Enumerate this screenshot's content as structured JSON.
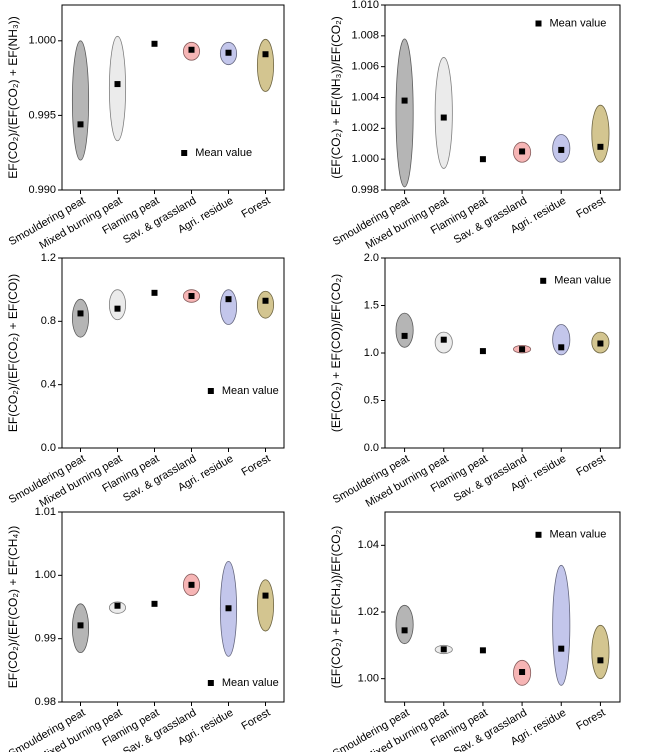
{
  "chart_data": [
    {
      "type": "scatter",
      "y_label": "EF(CO₂)/(EF(CO₂) + EF(NH₃))",
      "categories": [
        "Smouldering peat",
        "Mixed burning peat",
        "Flaming peat",
        "Sav. & grassland",
        "Agri. residue",
        "Forest"
      ],
      "colors": [
        "#a8a8a8",
        "#e8e8e8",
        null,
        "#f4a8a8",
        "#b8bce8",
        "#cbbb7c"
      ],
      "series": [
        {
          "name": "Mean value",
          "color": "#000000",
          "values": [
            0.9944,
            0.9971,
            0.9998,
            0.9994,
            0.9992,
            0.9991
          ]
        }
      ],
      "low": [
        0.992,
        0.9933,
        null,
        0.9987,
        0.9984,
        0.9966
      ],
      "high": [
        1.0,
        1.0003,
        null,
        0.9999,
        0.9999,
        1.0001
      ],
      "ylim": [
        0.99,
        1.0024
      ],
      "yticks": [
        {
          "value": 0.99,
          "label": "0.990"
        },
        0.995,
        {
          "value": 1,
          "label": "1.000"
        }
      ]
    },
    {
      "type": "scatter",
      "y_label": "(EF(CO₂) + EF(NH₃))/EF(CO₂)",
      "categories": [
        "Smouldering peat",
        "Mixed burning peat",
        "Flaming peat",
        "Sav. & grassland",
        "Agri. residue",
        "Forest"
      ],
      "colors": [
        "#a8a8a8",
        "#e8e8e8",
        null,
        "#f4a8a8",
        "#b8bce8",
        "#cbbb7c"
      ],
      "series": [
        {
          "name": "Mean value",
          "color": "#000000",
          "values": [
            1.0038,
            1.0027,
            1.0,
            1.0005,
            1.0006,
            1.0008
          ]
        }
      ],
      "low": [
        0.9982,
        0.9994,
        null,
        0.9998,
        0.9998,
        0.9998
      ],
      "high": [
        1.0078,
        1.0066,
        null,
        1.0011,
        1.0016,
        1.0035
      ],
      "ylim": [
        0.998,
        1.01
      ],
      "yticks": [
        {
          "value": 0.998,
          "label": "0.998"
        },
        {
          "value": 1,
          "label": "1.000"
        },
        1.002,
        1.004,
        1.006,
        1.008,
        {
          "value": 1.01,
          "label": "1.010"
        }
      ]
    },
    {
      "type": "scatter",
      "y_label": "EF(CO₂)/(EF(CO₂) + EF(CO))",
      "categories": [
        "Smouldering peat",
        "Mixed burning peat",
        "Flaming peat",
        "Sav. & grassland",
        "Agri. residue",
        "Forest"
      ],
      "colors": [
        "#a8a8a8",
        "#e8e8e8",
        null,
        "#f4a8a8",
        "#b8bce8",
        "#cbbb7c"
      ],
      "series": [
        {
          "name": "Mean value",
          "color": "#000000",
          "values": [
            0.85,
            0.88,
            0.98,
            0.96,
            0.94,
            0.93
          ]
        }
      ],
      "low": [
        0.7,
        0.81,
        null,
        0.92,
        0.78,
        0.82
      ],
      "high": [
        0.94,
        1.0,
        null,
        1.0,
        1.0,
        0.99
      ],
      "ylim": [
        0,
        1.2
      ],
      "yticks": [
        {
          "value": 0,
          "label": "0.0"
        },
        0.4,
        0.8,
        1.2
      ]
    },
    {
      "type": "scatter",
      "y_label": "(EF(CO₂) + EF(CO))/EF(CO₂)",
      "categories": [
        "Smouldering peat",
        "Mixed burning peat",
        "Flaming peat",
        "Sav. & grassland",
        "Agri. residue",
        "Forest"
      ],
      "colors": [
        "#a8a8a8",
        "#e8e8e8",
        null,
        "#f4a8a8",
        "#b8bce8",
        "#cbbb7c"
      ],
      "series": [
        {
          "name": "Mean value",
          "color": "#000000",
          "values": [
            1.18,
            1.14,
            1.02,
            1.04,
            1.06,
            1.1
          ]
        }
      ],
      "low": [
        1.06,
        1.0,
        null,
        1.0,
        0.98,
        1.0
      ],
      "high": [
        1.42,
        1.22,
        null,
        1.08,
        1.3,
        1.22
      ],
      "ylim": [
        0,
        2
      ],
      "yticks": [
        {
          "value": 0,
          "label": "0.0"
        },
        0.5,
        {
          "value": 1,
          "label": "1.0"
        },
        1.5,
        {
          "value": 2,
          "label": "2.0"
        }
      ]
    },
    {
      "type": "scatter",
      "y_label": "EF(CO₂)/(EF(CO₂) + EF(CH₄))",
      "categories": [
        "Smouldering peat",
        "Mixed burning peat",
        "Flaming peat",
        "Sav. & grassland",
        "Agri. residue",
        "Forest"
      ],
      "colors": [
        "#a8a8a8",
        "#e8e8e8",
        null,
        "#f4a8a8",
        "#b8bce8",
        "#cbbb7c"
      ],
      "series": [
        {
          "name": "Mean value",
          "color": "#000000",
          "values": [
            0.9921,
            0.9952,
            0.9955,
            0.9985,
            0.9948,
            0.9968
          ]
        }
      ],
      "low": [
        0.9878,
        0.994,
        null,
        0.9968,
        0.9872,
        0.9912
      ],
      "high": [
        0.9955,
        0.9958,
        null,
        1.0002,
        1.0022,
        0.9993
      ],
      "ylim": [
        0.98,
        1.01
      ],
      "yticks": [
        0.98,
        0.99,
        {
          "value": 1,
          "label": "1.00"
        },
        1.01
      ]
    },
    {
      "type": "scatter",
      "y_label": "(EF(CO₂) + EF(CH₄))/EF(CO₂)",
      "categories": [
        "Smouldering peat",
        "Mixed burning peat",
        "Flaming peat",
        "Sav. & grassland",
        "Agri. residue",
        "Forest"
      ],
      "colors": [
        "#a8a8a8",
        "#e8e8e8",
        null,
        "#f4a8a8",
        "#b8bce8",
        "#cbbb7c"
      ],
      "series": [
        {
          "name": "Mean value",
          "color": "#000000",
          "values": [
            1.0145,
            1.0088,
            1.0085,
            1.002,
            1.009,
            1.0055
          ]
        }
      ],
      "low": [
        1.0105,
        1.0075,
        null,
        0.998,
        0.998,
        1.0
      ],
      "high": [
        1.022,
        1.01,
        null,
        1.0055,
        1.034,
        1.016
      ],
      "ylim": [
        0.993,
        1.05
      ],
      "yticks": [
        {
          "value": 1,
          "label": "1.00"
        },
        1.02,
        1.04
      ]
    }
  ]
}
